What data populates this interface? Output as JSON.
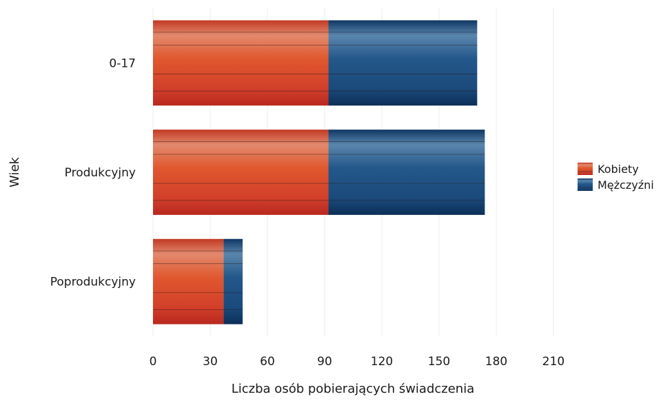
{
  "chart_data": {
    "type": "bar",
    "orientation": "horizontal",
    "stacked": true,
    "categories": [
      "0-17",
      "Produkcyjny",
      "Poprodukcyjny"
    ],
    "series": [
      {
        "name": "Kobiety",
        "values": [
          92,
          92,
          37
        ],
        "color": "#d9432a"
      },
      {
        "name": "Mężczyźni",
        "values": [
          78,
          82,
          10
        ],
        "color": "#1d4e80"
      }
    ],
    "xlabel": "Liczba osób pobierających świadczenia",
    "ylabel": "Wiek",
    "xlim": [
      0,
      210
    ],
    "xticks": [
      0,
      30,
      60,
      90,
      120,
      150,
      180,
      210
    ],
    "grid": true,
    "legend": "right"
  }
}
